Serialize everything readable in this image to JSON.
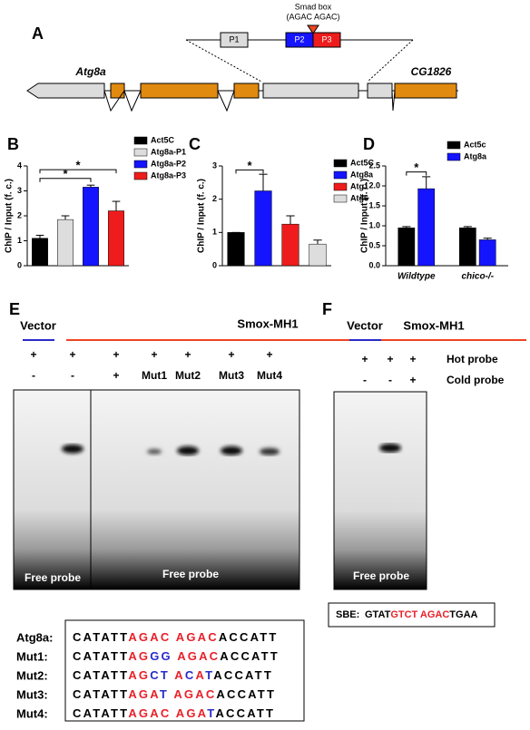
{
  "chart_data": [
    {
      "type": "bar",
      "panel_label": "B",
      "ylabel": "ChIP / Input (f. c.)",
      "categories": [
        "Act5C",
        "Atg8a-P1",
        "Atg8a-P2",
        "Atg8a-P3"
      ],
      "values": [
        1.1,
        1.85,
        3.15,
        2.2
      ],
      "errors": [
        0.12,
        0.15,
        0.08,
        0.38
      ],
      "colors": [
        "#000000",
        "#dddddd",
        "#1414ff",
        "#ee1c1c"
      ],
      "ylim": [
        0,
        4
      ],
      "yticks": [
        0,
        1,
        2,
        3,
        4
      ],
      "annotations": [
        "*",
        "*"
      ]
    },
    {
      "type": "bar",
      "panel_label": "C",
      "ylabel": "ChIP / Input (f. c.)",
      "categories": [
        "Act5C",
        "Atg8a",
        "Atg1",
        "Atg6"
      ],
      "values": [
        1.0,
        2.25,
        1.25,
        0.65
      ],
      "errors": [
        0,
        0.5,
        0.25,
        0.12
      ],
      "colors": [
        "#000000",
        "#1414ff",
        "#ee1c1c",
        "#dddddd"
      ],
      "ylim": [
        0,
        3
      ],
      "yticks": [
        0,
        1,
        2,
        3
      ],
      "annotations": [
        "*"
      ]
    },
    {
      "type": "grouped_bar",
      "panel_label": "D",
      "ylabel": "ChIP / Input (f. c.)",
      "categories": [
        "Wildtype",
        "chico-/-"
      ],
      "series": [
        {
          "name": "Act5c",
          "color": "#000000",
          "values": [
            0.95,
            0.95
          ],
          "errors": [
            0.03,
            0.03
          ]
        },
        {
          "name": "Atg8a",
          "color": "#1414ff",
          "values": [
            1.93,
            0.65
          ],
          "errors": [
            0.3,
            0.04
          ]
        }
      ],
      "ylim": [
        0,
        2.5
      ],
      "yticks": [
        {
          "value": 0,
          "label": "0.0"
        },
        0.5,
        {
          "value": 1,
          "label": "1.0"
        },
        1.5,
        {
          "value": 2,
          "label": "2.0"
        },
        2.5
      ],
      "annotations": [
        "*"
      ]
    }
  ],
  "panel_a": {
    "label": "A",
    "smad_box": "Smad box",
    "smad_seq": "(AGAC AGAC)",
    "regions": [
      "P1",
      "P2",
      "P3"
    ],
    "genes": [
      "Atg8a",
      "CG1826"
    ]
  },
  "panel_e": {
    "label": "E",
    "vector": "Vector",
    "protein": "Smox-MH1",
    "rows": [
      [
        "+",
        "+",
        "+",
        "+",
        "+",
        "+",
        "+"
      ],
      [
        "-",
        "-",
        "+",
        "Mut1",
        "Mut2",
        "Mut3",
        "Mut4"
      ]
    ],
    "free_probe": [
      "Free probe",
      "Free probe"
    ],
    "sequences": [
      {
        "name": "Atg8a:",
        "segments": [
          {
            "text": "CATATT",
            "color": "#000"
          },
          {
            "text": "AGAC AGAC",
            "color": "#e8212a"
          },
          {
            "text": "ACCATT",
            "color": "#000"
          }
        ]
      },
      {
        "name": "Mut1:",
        "segments": [
          {
            "text": "CATATT",
            "color": "#000"
          },
          {
            "text": "AG",
            "color": "#e8212a"
          },
          {
            "text": "GG",
            "color": "#2a2ac8"
          },
          {
            "text": " AGAC",
            "color": "#e8212a"
          },
          {
            "text": "ACCATT",
            "color": "#000"
          }
        ]
      },
      {
        "name": "Mut2:",
        "segments": [
          {
            "text": "CATATT",
            "color": "#000"
          },
          {
            "text": "AG",
            "color": "#e8212a"
          },
          {
            "text": "CT",
            "color": "#2a2ac8"
          },
          {
            "text": " A",
            "color": "#e8212a"
          },
          {
            "text": "C",
            "color": "#2a2ac8"
          },
          {
            "text": "A",
            "color": "#e8212a"
          },
          {
            "text": "T",
            "color": "#2a2ac8"
          },
          {
            "text": "ACCATT",
            "color": "#000"
          }
        ]
      },
      {
        "name": "Mut3:",
        "segments": [
          {
            "text": "CATATT",
            "color": "#000"
          },
          {
            "text": "AGA",
            "color": "#e8212a"
          },
          {
            "text": "T",
            "color": "#2a2ac8"
          },
          {
            "text": " AGAC",
            "color": "#e8212a"
          },
          {
            "text": "ACCATT",
            "color": "#000"
          }
        ]
      },
      {
        "name": "Mut4:",
        "segments": [
          {
            "text": "CATATT",
            "color": "#000"
          },
          {
            "text": "AGAC AGA",
            "color": "#e8212a"
          },
          {
            "text": "T",
            "color": "#2a2ac8"
          },
          {
            "text": "ACCATT",
            "color": "#000"
          }
        ]
      }
    ]
  },
  "panel_f": {
    "label": "F",
    "vector": "Vector",
    "protein": "Smox-MH1",
    "rows": [
      {
        "cells": [
          "+",
          "+",
          "+"
        ],
        "label": "Hot probe"
      },
      {
        "cells": [
          "-",
          "-",
          "+"
        ],
        "label": "Cold probe"
      }
    ],
    "free_probe": "Free probe",
    "sbe": {
      "label": "SBE:",
      "segments": [
        {
          "text": "GTAT",
          "color": "#000"
        },
        {
          "text": "GTCT AGAC",
          "color": "#e8212a"
        },
        {
          "text": "TGAA",
          "color": "#000"
        }
      ]
    }
  }
}
